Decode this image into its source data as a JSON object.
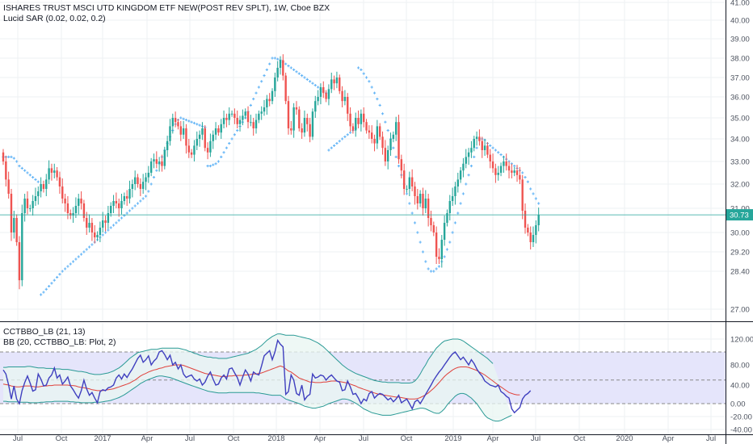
{
  "main_legend": {
    "title": "ISHARES TRUST MSCI UTD KINGDOM ETF NEW(POST REV SPLT), 1W, Cboe BZX",
    "indicator": "Lucid SAR (0.02, 0.02, 0.2)"
  },
  "osc_legend": {
    "line1": "CCTBBO_LB (21, 13)",
    "line2": "BB (20, CCTBBO_LB: Plot, 2)"
  },
  "last_price_label": "30.73",
  "colors": {
    "up": "#26a69a",
    "down": "#ef5350",
    "sar": "#64b5f6",
    "price_line": "#26a69a",
    "osc_line": "#3f3fbf",
    "bb_basis": "#e0423c",
    "bb_band": "#2a9a95",
    "bb_fill": "#e8f6f2",
    "range_fill": "#e5e5fb",
    "grid": "#eef0f3",
    "axis_text": "#4c525e"
  },
  "chart_data": [
    {
      "type": "candlestick",
      "x_labels": [
        "Jul",
        "Oct",
        "2017",
        "Apr",
        "Jul",
        "Oct",
        "2018",
        "Apr",
        "Jul",
        "Oct",
        "2019",
        "Apr",
        "Jul",
        "Oct",
        "2020",
        "Apr",
        "Jul"
      ],
      "y_ticks": [
        27.0,
        28.4,
        29.2,
        30.0,
        31.0,
        32.0,
        33.0,
        34.0,
        35.0,
        36.0,
        37.0,
        38.0,
        39.0,
        40.0,
        41.0
      ],
      "y_tick_labels": [
        "27.00",
        "28.40",
        "29.20",
        "30.00",
        "31.00",
        "32.00",
        "33.00",
        "34.00",
        "35.00",
        "36.00",
        "37.00",
        "38.00",
        "39.00",
        "40.00",
        "41.00"
      ],
      "last_price": 30.73,
      "close": [
        33.0,
        32.2,
        31.6,
        30.0,
        30.6,
        29.6,
        28.1,
        30.8,
        31.4,
        31.0,
        31.0,
        31.3,
        31.5,
        31.7,
        32.0,
        31.8,
        32.2,
        32.7,
        32.5,
        32.6,
        32.3,
        31.9,
        31.4,
        31.2,
        30.8,
        30.7,
        30.8,
        31.1,
        31.4,
        31.2,
        30.6,
        30.2,
        30.4,
        30.0,
        29.8,
        29.9,
        30.2,
        30.5,
        30.4,
        30.8,
        31.1,
        31.3,
        31.2,
        31.0,
        31.3,
        31.5,
        31.4,
        31.8,
        32.0,
        32.3,
        32.0,
        31.8,
        32.1,
        32.3,
        32.5,
        33.0,
        33.1,
        32.9,
        33.0,
        32.8,
        33.5,
        33.9,
        34.6,
        35.0,
        34.8,
        34.6,
        34.2,
        34.5,
        33.7,
        33.4,
        33.3,
        33.7,
        34.0,
        34.2,
        34.5,
        33.6,
        33.4,
        33.9,
        34.2,
        34.5,
        34.3,
        34.7,
        35.0,
        34.9,
        35.2,
        35.2,
        35.0,
        34.7,
        34.9,
        35.1,
        35.3,
        34.8,
        34.8,
        34.5,
        34.9,
        35.2,
        35.3,
        35.5,
        35.9,
        35.8,
        36.3,
        37.0,
        37.5,
        37.9,
        37.1,
        35.8,
        34.5,
        34.4,
        35.5,
        35.4,
        34.5,
        34.3,
        35.0,
        34.7,
        34.1,
        35.3,
        35.8,
        36.0,
        36.5,
        36.2,
        35.9,
        36.4,
        36.9,
        36.7,
        37.0,
        36.3,
        35.8,
        36.0,
        35.2,
        34.6,
        34.4,
        35.0,
        34.7,
        35.2,
        34.8,
        34.4,
        34.3,
        34.0,
        33.8,
        34.6,
        34.1,
        33.6,
        33.0,
        33.5,
        34.0,
        34.2,
        34.8,
        33.1,
        32.6,
        31.8,
        31.8,
        32.3,
        31.9,
        31.5,
        31.2,
        31.6,
        31.0,
        31.4,
        30.6,
        30.3,
        30.0,
        29.0,
        28.9,
        29.7,
        30.4,
        30.8,
        31.3,
        31.5,
        31.9,
        32.2,
        32.6,
        32.9,
        33.2,
        33.4,
        33.6,
        34.0,
        34.1,
        33.9,
        33.5,
        33.7,
        33.3,
        33.0,
        32.7,
        32.4,
        32.5,
        32.8,
        33.0,
        32.8,
        32.6,
        32.5,
        32.6,
        32.4,
        32.2,
        30.9,
        30.2,
        30.0,
        29.6,
        29.9,
        30.3,
        30.73
      ],
      "sar": [
        33.2,
        33.2,
        33.2,
        33.2,
        33.14,
        33.0,
        32.8,
        32.7,
        32.6,
        32.5,
        32.4,
        32.3,
        32.2,
        32.1,
        27.6,
        27.7,
        27.8,
        27.9,
        28.0,
        28.1,
        28.2,
        28.3,
        28.4,
        28.5,
        28.6,
        28.7,
        28.8,
        28.9,
        29.0,
        29.1,
        29.2,
        29.3,
        29.4,
        29.5,
        29.6,
        29.7,
        29.8,
        29.9,
        30.0,
        30.1,
        30.2,
        30.3,
        30.4,
        30.5,
        30.6,
        30.7,
        30.8,
        30.9,
        31.0,
        31.1,
        31.2,
        31.3,
        31.4,
        31.5,
        31.7,
        32.0,
        32.3,
        32.6,
        32.9,
        33.2,
        33.5,
        33.8,
        34.1,
        34.4,
        34.7,
        34.9,
        35.0,
        34.95,
        34.9,
        34.85,
        34.8,
        34.75,
        34.7,
        34.65,
        34.6,
        34.55,
        32.8,
        32.8,
        32.85,
        32.9,
        33.0,
        33.2,
        33.4,
        33.6,
        33.8,
        34.0,
        34.2,
        34.4,
        34.6,
        34.8,
        35.0,
        35.3,
        35.6,
        35.9,
        36.2,
        36.5,
        36.8,
        37.1,
        37.4,
        37.7,
        38.0,
        38.0,
        37.95,
        37.9,
        37.8,
        37.7,
        37.6,
        37.5,
        37.4,
        37.3,
        37.2,
        37.1,
        37.0,
        36.9,
        36.8,
        36.7,
        36.6,
        36.5,
        36.4,
        36.3,
        36.2,
        33.5,
        33.6,
        33.7,
        33.8,
        33.9,
        34.0,
        34.1,
        34.2,
        34.3,
        34.4,
        34.5,
        37.5,
        37.4,
        37.2,
        37.0,
        36.8,
        36.5,
        36.2,
        35.9,
        35.6,
        35.2,
        34.8,
        34.4,
        34.0,
        33.6,
        33.2,
        32.8,
        32.4,
        32.0,
        31.6,
        31.2,
        30.8,
        30.4,
        30.0,
        29.6,
        29.2,
        28.8,
        28.5,
        28.4,
        28.4,
        28.5,
        28.6,
        28.8,
        29.0,
        29.3,
        29.6,
        30.0,
        30.4,
        30.8,
        31.2,
        31.6,
        32.0,
        32.4,
        32.8,
        33.2,
        33.6,
        34.0,
        34.0,
        33.95,
        33.8,
        33.7,
        33.6,
        33.5,
        33.4,
        33.3,
        33.2,
        33.1,
        33.0,
        32.9,
        32.8,
        32.7,
        32.6,
        32.5,
        32.3,
        32.1,
        31.8,
        31.6,
        31.4,
        31.2
      ],
      "sar_start_index": 0,
      "sar_visible_to_index": 201
    },
    {
      "type": "line",
      "name": "CCTBBO_LB",
      "y_ticks": [
        -40,
        -20,
        0,
        40,
        80,
        120
      ],
      "y_tick_labels": [
        "-40.00",
        "-20.00",
        "0.00",
        "40.00",
        "80.00",
        "120.00"
      ],
      "range_band": [
        0,
        100
      ],
      "midline": 50,
      "values": [
        70,
        62,
        40,
        10,
        38,
        10,
        0,
        28,
        45,
        58,
        44,
        27,
        30,
        62,
        52,
        38,
        40,
        54,
        60,
        74,
        54,
        60,
        42,
        48,
        56,
        38,
        30,
        20,
        12,
        28,
        50,
        32,
        18,
        24,
        12,
        2,
        26,
        30,
        28,
        34,
        36,
        40,
        54,
        60,
        52,
        62,
        55,
        64,
        72,
        82,
        90,
        95,
        84,
        88,
        94,
        80,
        86,
        90,
        100,
        102,
        96,
        88,
        95,
        80,
        84,
        72,
        80,
        62,
        55,
        58,
        60,
        52,
        48,
        52,
        40,
        46,
        58,
        66,
        52,
        40,
        42,
        54,
        60,
        52,
        72,
        74,
        64,
        55,
        40,
        56,
        70,
        62,
        48,
        66,
        62,
        60,
        78,
        94,
        98,
        102,
        88,
        100,
        118,
        112,
        108,
        20,
        26,
        60,
        50,
        22,
        18,
        40,
        8,
        16,
        20,
        62,
        54,
        56,
        60,
        58,
        50,
        56,
        60,
        54,
        48,
        46,
        28,
        30,
        48,
        36,
        20,
        22,
        12,
        0,
        10,
        6,
        22,
        26,
        12,
        18,
        22,
        20,
        14,
        8,
        12,
        4,
        10,
        18,
        2,
        6,
        10,
        0,
        -8,
        4,
        8,
        0,
        10,
        20,
        30,
        40,
        50,
        58,
        66,
        72,
        80,
        86,
        92,
        97,
        100,
        94,
        88,
        92,
        86,
        80,
        88,
        82,
        72,
        64,
        58,
        48,
        44,
        40,
        38,
        36,
        40,
        26,
        22,
        16,
        12,
        -8,
        -14,
        -10,
        -6,
        10,
        18,
        22,
        28
      ],
      "bb_basis": [
        42,
        41,
        40,
        38,
        37,
        36,
        36,
        37,
        38,
        38,
        38,
        37,
        36,
        36,
        37,
        38,
        38,
        39,
        39,
        40,
        40,
        40,
        40,
        40,
        40,
        39,
        39,
        38,
        36,
        35,
        34,
        33,
        32,
        30,
        29,
        28,
        28,
        28,
        29,
        30,
        31,
        32,
        34,
        36,
        38,
        40,
        42,
        44,
        47,
        50,
        54,
        58,
        61,
        63,
        66,
        68,
        70,
        71,
        73,
        74,
        76,
        77,
        78,
        79,
        80,
        80,
        80,
        79,
        77,
        75,
        73,
        71,
        69,
        67,
        65,
        63,
        62,
        61,
        60,
        59,
        58,
        57,
        57,
        57,
        58,
        58,
        59,
        59,
        59,
        59,
        60,
        60,
        61,
        62,
        62,
        63,
        64,
        66,
        68,
        70,
        72,
        74,
        76,
        78,
        76,
        72,
        68,
        66,
        62,
        58,
        54,
        52,
        50,
        48,
        46,
        46,
        45,
        45,
        45,
        46,
        46,
        47,
        48,
        48,
        48,
        47,
        46,
        45,
        44,
        42,
        40,
        38,
        35,
        33,
        31,
        29,
        27,
        25,
        23,
        21,
        20,
        19,
        18,
        17,
        16,
        15,
        14,
        14,
        13,
        12,
        11,
        10,
        10,
        10,
        11,
        13,
        16,
        19,
        23,
        28,
        33,
        39,
        45,
        51,
        57,
        62,
        66,
        70,
        73,
        75,
        76,
        76,
        76,
        75,
        73,
        71,
        69,
        66,
        63,
        60,
        56,
        52,
        48,
        44,
        40,
        36,
        32,
        28,
        24,
        22,
        20,
        19,
        19
      ],
      "bb_upper": [
        75,
        75,
        76,
        76,
        76,
        76,
        76,
        76,
        76,
        77,
        77,
        76,
        75,
        74,
        74,
        74,
        73,
        73,
        73,
        72,
        72,
        72,
        71,
        71,
        71,
        70,
        69,
        68,
        67,
        67,
        66,
        65,
        63,
        62,
        61,
        61,
        61,
        62,
        63,
        64,
        66,
        68,
        71,
        74,
        78,
        82,
        86,
        90,
        93,
        96,
        99,
        100,
        101,
        102,
        103,
        104,
        104,
        104,
        105,
        106,
        106,
        106,
        106,
        106,
        106,
        106,
        105,
        104,
        103,
        101,
        100,
        98,
        97,
        95,
        94,
        93,
        92,
        92,
        91,
        91,
        90,
        90,
        90,
        90,
        91,
        92,
        93,
        94,
        95,
        96,
        97,
        98,
        100,
        102,
        104,
        107,
        110,
        114,
        118,
        121,
        124,
        126,
        128,
        128,
        127,
        126,
        126,
        126,
        126,
        125,
        124,
        123,
        122,
        121,
        120,
        118,
        116,
        114,
        111,
        108,
        104,
        100,
        96,
        92,
        88,
        84,
        80,
        76,
        72,
        69,
        66,
        63,
        61,
        59,
        57,
        55,
        53,
        51,
        49,
        48,
        47,
        46,
        46,
        45,
        45,
        45,
        45,
        45,
        44,
        44,
        44,
        44,
        45,
        48,
        54,
        62,
        72,
        80,
        88,
        94,
        100,
        106,
        110,
        114,
        117,
        118,
        119,
        120,
        120,
        120,
        119,
        117,
        114,
        111,
        108,
        105,
        102,
        99,
        96,
        93,
        90,
        86,
        82
      ],
      "bb_lower": [
        5,
        5,
        4,
        4,
        4,
        4,
        3,
        3,
        3,
        3,
        2,
        2,
        2,
        2,
        3,
        3,
        4,
        4,
        4,
        5,
        5,
        5,
        5,
        5,
        5,
        4,
        4,
        3,
        3,
        2,
        2,
        2,
        2,
        2,
        3,
        3,
        3,
        4,
        5,
        6,
        7,
        9,
        11,
        13,
        16,
        19,
        23,
        27,
        31,
        35,
        39,
        43,
        46,
        49,
        51,
        53,
        55,
        57,
        58,
        58,
        57,
        56,
        55,
        53,
        51,
        49,
        47,
        45,
        43,
        41,
        39,
        37,
        35,
        33,
        31,
        29,
        27,
        26,
        25,
        24,
        23,
        23,
        23,
        23,
        24,
        24,
        24,
        24,
        24,
        24,
        24,
        24,
        24,
        24,
        23,
        23,
        22,
        21,
        20,
        19,
        18,
        18,
        18,
        18,
        14,
        10,
        8,
        6,
        4,
        2,
        0,
        -2,
        -4,
        -5,
        -6,
        -7,
        -7,
        -6,
        -5,
        -4,
        -2,
        0,
        2,
        4,
        6,
        8,
        10,
        10,
        9,
        7,
        4,
        1,
        -2,
        -5,
        -8,
        -10,
        -12,
        -14,
        -15,
        -16,
        -17,
        -18,
        -18,
        -18,
        -18,
        -17,
        -16,
        -15,
        -14,
        -13,
        -12,
        -11,
        -10,
        -9,
        -8,
        -7,
        -7,
        -8,
        -10,
        -12,
        -14,
        -15,
        -15,
        -12,
        -8,
        -2,
        4,
        10,
        16,
        20,
        22,
        22,
        20,
        16,
        12,
        6,
        0,
        -6,
        -12,
        -18,
        -22,
        -24,
        -26,
        -27,
        -27,
        -26,
        -24,
        -22,
        -20,
        -18
      ]
    }
  ]
}
